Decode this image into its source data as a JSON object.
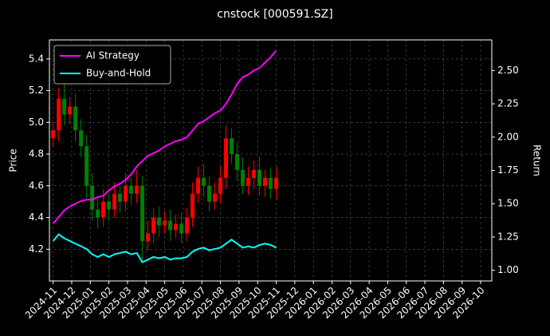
{
  "chart_data": {
    "type": "candlestick",
    "title": "cnstock [000591.SZ]",
    "ylabel": "Price",
    "y2label": "Return",
    "up_color": "#ff0000",
    "down_color": "#008000",
    "grid": true,
    "legend": "upper left",
    "x": [
      0,
      0.3,
      0.6,
      0.9,
      1.2,
      1.5,
      1.8,
      2.1,
      2.4,
      2.7,
      3.0,
      3.3,
      3.6,
      3.9,
      4.2,
      4.5,
      4.8,
      5.1,
      5.4,
      5.7,
      6.0,
      6.3,
      6.6,
      6.9,
      7.2,
      7.5,
      7.8,
      8.1,
      8.4,
      8.7,
      9.0,
      9.3,
      9.6,
      9.9,
      10.2,
      10.5,
      10.8,
      11.1,
      11.4,
      11.7,
      12.0
    ],
    "open": [
      4.9,
      4.95,
      5.15,
      5.05,
      5.1,
      4.95,
      4.85,
      4.6,
      4.45,
      4.4,
      4.5,
      4.45,
      4.55,
      4.5,
      4.6,
      4.55,
      4.6,
      4.25,
      4.3,
      4.4,
      4.35,
      4.38,
      4.32,
      4.36,
      4.3,
      4.4,
      4.55,
      4.65,
      4.6,
      4.5,
      4.55,
      4.65,
      4.9,
      4.8,
      4.7,
      4.6,
      4.65,
      4.7,
      4.6,
      4.65,
      4.58
    ],
    "high": [
      5.01,
      5.22,
      5.25,
      5.16,
      5.18,
      5.02,
      4.92,
      4.68,
      4.52,
      4.58,
      4.56,
      4.62,
      4.6,
      4.68,
      4.65,
      4.7,
      4.66,
      4.38,
      4.46,
      4.47,
      4.44,
      4.45,
      4.42,
      4.43,
      4.46,
      4.62,
      4.72,
      4.74,
      4.66,
      4.62,
      4.72,
      4.98,
      4.96,
      4.87,
      4.78,
      4.72,
      4.76,
      4.78,
      4.7,
      4.71,
      4.72
    ],
    "low": [
      4.84,
      4.88,
      4.98,
      4.99,
      4.88,
      4.78,
      4.52,
      4.38,
      4.33,
      4.34,
      4.38,
      4.4,
      4.43,
      4.44,
      4.48,
      4.49,
      4.12,
      4.19,
      4.24,
      4.28,
      4.3,
      4.25,
      4.27,
      4.24,
      4.25,
      4.34,
      4.49,
      4.53,
      4.44,
      4.45,
      4.49,
      4.58,
      4.74,
      4.63,
      4.55,
      4.54,
      4.58,
      4.54,
      4.53,
      4.52,
      4.51
    ],
    "close": [
      4.95,
      5.15,
      5.05,
      5.1,
      4.95,
      4.85,
      4.6,
      4.45,
      4.4,
      4.5,
      4.45,
      4.55,
      4.5,
      4.6,
      4.55,
      4.6,
      4.25,
      4.3,
      4.4,
      4.35,
      4.38,
      4.32,
      4.36,
      4.3,
      4.4,
      4.55,
      4.65,
      4.6,
      4.5,
      4.55,
      4.65,
      4.9,
      4.8,
      4.7,
      4.6,
      4.65,
      4.7,
      4.6,
      4.65,
      4.58,
      4.65
    ],
    "series": [
      {
        "name": "AI Strategy",
        "color": "#ff00ff",
        "axis": "y2",
        "values": [
          1.35,
          1.4,
          1.45,
          1.48,
          1.5,
          1.52,
          1.53,
          1.53,
          1.55,
          1.56,
          1.6,
          1.63,
          1.65,
          1.68,
          1.72,
          1.78,
          1.82,
          1.86,
          1.88,
          1.9,
          1.93,
          1.95,
          1.97,
          1.98,
          2.0,
          2.05,
          2.1,
          2.12,
          2.15,
          2.18,
          2.2,
          2.25,
          2.32,
          2.4,
          2.45,
          2.47,
          2.5,
          2.52,
          2.56,
          2.6,
          2.65
        ]
      },
      {
        "name": "Buy-and-Hold",
        "color": "#00ffff",
        "axis": "y2",
        "values": [
          1.22,
          1.27,
          1.24,
          1.22,
          1.2,
          1.18,
          1.16,
          1.12,
          1.1,
          1.12,
          1.1,
          1.12,
          1.13,
          1.14,
          1.12,
          1.13,
          1.06,
          1.08,
          1.1,
          1.09,
          1.1,
          1.08,
          1.09,
          1.09,
          1.1,
          1.14,
          1.16,
          1.17,
          1.15,
          1.16,
          1.17,
          1.2,
          1.23,
          1.2,
          1.17,
          1.18,
          1.17,
          1.19,
          1.2,
          1.19,
          1.17
        ]
      }
    ],
    "xlim": [
      -0.2,
      23.6
    ],
    "xticks": [
      {
        "value": 0,
        "label": "2024-11"
      },
      {
        "value": 1,
        "label": "2024-12"
      },
      {
        "value": 2,
        "label": "2025-01"
      },
      {
        "value": 3,
        "label": "2025-02"
      },
      {
        "value": 4,
        "label": "2025-03"
      },
      {
        "value": 5,
        "label": "2025-04"
      },
      {
        "value": 6,
        "label": "2025-05"
      },
      {
        "value": 7,
        "label": "2025-06"
      },
      {
        "value": 8,
        "label": "2025-07"
      },
      {
        "value": 9,
        "label": "2025-08"
      },
      {
        "value": 10,
        "label": "2025-09"
      },
      {
        "value": 11,
        "label": "2025-10"
      },
      {
        "value": 12,
        "label": "2025-11"
      },
      {
        "value": 13,
        "label": "2025-12"
      },
      {
        "value": 14,
        "label": "2026-01"
      },
      {
        "value": 15,
        "label": "2026-02"
      },
      {
        "value": 16,
        "label": "2026-03"
      },
      {
        "value": 17,
        "label": "2026-04"
      },
      {
        "value": 18,
        "label": "2026-05"
      },
      {
        "value": 19,
        "label": "2026-06"
      },
      {
        "value": 20,
        "label": "2026-07"
      },
      {
        "value": 21,
        "label": "2026-08"
      },
      {
        "value": 22,
        "label": "2026-09"
      },
      {
        "value": 23,
        "label": "2026-10"
      }
    ],
    "ylim": [
      4.0,
      5.52
    ],
    "yticks": [
      4.2,
      4.4,
      4.6,
      4.8,
      {
        "value": 5.0,
        "label": "5.0"
      },
      5.2,
      5.4
    ],
    "y2lim": [
      0.92,
      2.73
    ],
    "y2ticks": [
      {
        "value": 1.0,
        "label": "1.00"
      },
      {
        "value": 1.25,
        "label": "1.25"
      },
      {
        "value": 1.5,
        "label": "1.50"
      },
      {
        "value": 1.75,
        "label": "1.75"
      },
      {
        "value": 2.0,
        "label": "2.00"
      },
      {
        "value": 2.25,
        "label": "2.25"
      },
      {
        "value": 2.5,
        "label": "2.50"
      }
    ]
  }
}
